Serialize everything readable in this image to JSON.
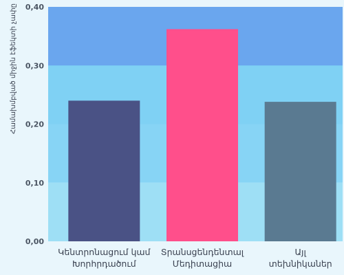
{
  "chart_data": {
    "type": "bar",
    "title": "",
    "xlabel": "",
    "ylabel": "Համախմբված միջին էֆեկտի չափը",
    "ylim": [
      0,
      0.4
    ],
    "y_ticks": [
      "0,00",
      "0,10",
      "0,20",
      "0,30",
      "0,40"
    ],
    "y_tick_values": [
      0,
      0.1,
      0.2,
      0.3,
      0.4
    ],
    "background_bands": [
      {
        "from": 0.0,
        "to": 0.1,
        "color": "#9edff5"
      },
      {
        "from": 0.1,
        "to": 0.2,
        "color": "#87d4f5"
      },
      {
        "from": 0.2,
        "to": 0.3,
        "color": "#7fd1f4"
      },
      {
        "from": 0.3,
        "to": 0.4,
        "color": "#40bef3"
      },
      {
        "from": 0.4,
        "to": 0.4,
        "color": "#6aa6ee"
      }
    ],
    "categories": [
      {
        "lines": [
          "Կենտրոնացում կամ",
          "Խորհրդածում"
        ]
      },
      {
        "lines": [
          "Տրանսցենդենտալ",
          "Մեդիտացիա"
        ]
      },
      {
        "lines": [
          "Այլ",
          "տեխնիկաներ"
        ]
      }
    ],
    "values": [
      0.24,
      0.362,
      0.238
    ],
    "bar_colors": [
      "#4a5285",
      "#ff4f8b",
      "#5a7a91"
    ],
    "grid": false,
    "legend": "none"
  }
}
